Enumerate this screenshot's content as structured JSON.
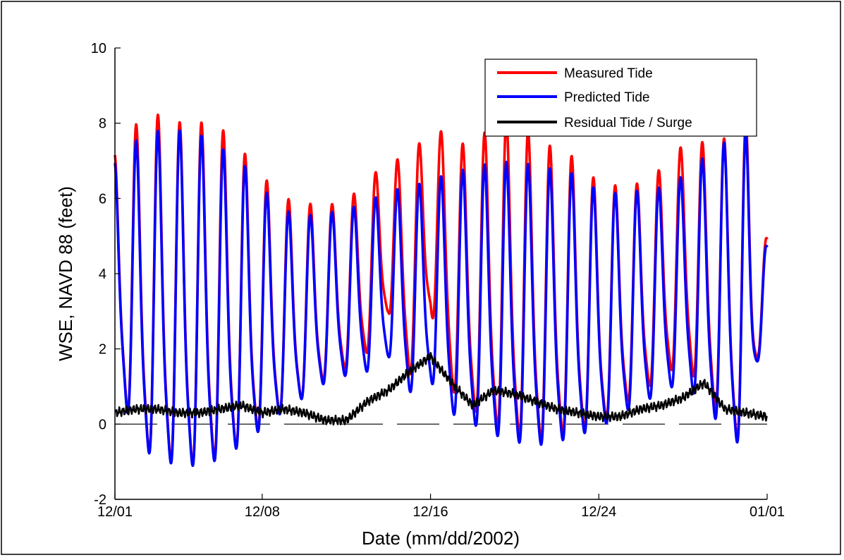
{
  "chart_data": {
    "type": "line",
    "title": "",
    "xlabel": "Date (mm/dd/2002)",
    "ylabel": "WSE, NAVD 88 (feet)",
    "ylim": [
      -2,
      10
    ],
    "x_range": [
      "2002-12-01",
      "2003-01-01"
    ],
    "x_ticks": [
      "12/01",
      "12/08",
      "12/16",
      "12/24",
      "01/01"
    ],
    "y_ticks": [
      "-2",
      "0",
      "2",
      "4",
      "6",
      "8",
      "10"
    ],
    "grid": false,
    "legend_position": "top-right",
    "series": [
      {
        "name": "Measured Tide",
        "color": "#ff0000",
        "x": [
          "2002-12-01",
          "2002-12-02",
          "2002-12-03",
          "2002-12-04",
          "2002-12-05",
          "2002-12-06",
          "2002-12-07",
          "2002-12-08",
          "2002-12-09",
          "2002-12-10",
          "2002-12-11",
          "2002-12-12",
          "2002-12-13",
          "2002-12-14",
          "2002-12-15",
          "2002-12-16",
          "2002-12-17",
          "2002-12-18",
          "2002-12-19",
          "2002-12-20",
          "2002-12-21",
          "2002-12-22",
          "2002-12-23",
          "2002-12-24",
          "2002-12-25",
          "2002-12-26",
          "2002-12-27",
          "2002-12-28",
          "2002-12-29",
          "2002-12-30",
          "2002-12-31",
          "2003-01-01"
        ],
        "high_tides": [
          6.7,
          7.2,
          7.4,
          7.2,
          7.2,
          7.1,
          6.6,
          6.0,
          5.5,
          5.4,
          5.4,
          5.5,
          6.1,
          6.6,
          6.6,
          7.4,
          7.1,
          6.6,
          7.4,
          7.3,
          6.9,
          6.6,
          6.4,
          5.8,
          5.8,
          5.9,
          6.3,
          6.9,
          6.9,
          6.9,
          7.3,
          4.8
        ],
        "low_tides": [
          1.3,
          -0.8,
          -1.3,
          -1.4,
          -1.5,
          -1.2,
          -0.9,
          -0.3,
          0.1,
          0.5,
          1.0,
          1.3,
          1.7,
          2.8,
          1.0,
          2.8,
          0.6,
          0.1,
          -0.4,
          -0.6,
          -0.8,
          -0.6,
          -0.5,
          -0.3,
          0.2,
          0.6,
          1.0,
          1.4,
          0.6,
          -0.4,
          -1.0,
          3.5
        ]
      },
      {
        "name": "Predicted Tide",
        "color": "#0000ff",
        "x": [
          "2002-12-01",
          "2002-12-02",
          "2002-12-03",
          "2002-12-04",
          "2002-12-05",
          "2002-12-06",
          "2002-12-07",
          "2002-12-08",
          "2002-12-09",
          "2002-12-10",
          "2002-12-11",
          "2002-12-12",
          "2002-12-13",
          "2002-12-14",
          "2002-12-15",
          "2002-12-16",
          "2002-12-17",
          "2002-12-18",
          "2002-12-19",
          "2002-12-20",
          "2002-12-21",
          "2002-12-22",
          "2002-12-23",
          "2002-12-24",
          "2002-12-25",
          "2002-12-26",
          "2002-12-27",
          "2002-12-28",
          "2002-12-29",
          "2002-12-30",
          "2002-12-31",
          "2003-01-01"
        ],
        "high_tides": [
          6.5,
          6.8,
          7.0,
          7.0,
          6.9,
          6.6,
          6.3,
          5.7,
          5.2,
          5.1,
          5.2,
          5.3,
          5.5,
          5.8,
          5.8,
          6.0,
          6.1,
          6.2,
          6.3,
          6.3,
          6.2,
          6.1,
          6.0,
          5.6,
          5.6,
          5.7,
          5.8,
          6.1,
          6.5,
          6.8,
          7.0,
          4.6
        ],
        "low_tides": [
          1.3,
          -0.9,
          -1.3,
          -1.5,
          -1.5,
          -1.3,
          -0.9,
          -0.4,
          0.1,
          0.5,
          0.9,
          1.1,
          1.2,
          1.6,
          0.6,
          0.9,
          0.0,
          -0.3,
          -0.6,
          -0.8,
          -0.9,
          -0.8,
          -0.6,
          -0.4,
          0.0,
          0.3,
          0.6,
          0.9,
          0.2,
          -0.5,
          -1.1,
          3.4
        ]
      },
      {
        "name": "Residual Tide / Surge",
        "color": "#000000",
        "x": [
          "2002-12-01",
          "2002-12-02",
          "2002-12-03",
          "2002-12-04",
          "2002-12-05",
          "2002-12-06",
          "2002-12-07",
          "2002-12-08",
          "2002-12-09",
          "2002-12-10",
          "2002-12-11",
          "2002-12-12",
          "2002-12-13",
          "2002-12-14",
          "2002-12-15",
          "2002-12-16",
          "2002-12-17",
          "2002-12-18",
          "2002-12-19",
          "2002-12-20",
          "2002-12-21",
          "2002-12-22",
          "2002-12-23",
          "2002-12-24",
          "2002-12-25",
          "2002-12-26",
          "2002-12-27",
          "2002-12-28",
          "2002-12-29",
          "2002-12-30",
          "2002-12-31",
          "2003-01-01"
        ],
        "y": [
          0.3,
          0.4,
          0.4,
          0.3,
          0.3,
          0.4,
          0.5,
          0.3,
          0.4,
          0.3,
          0.1,
          0.1,
          0.6,
          0.9,
          1.4,
          1.8,
          1.1,
          0.5,
          0.9,
          0.8,
          0.6,
          0.4,
          0.3,
          0.2,
          0.2,
          0.4,
          0.5,
          0.7,
          1.1,
          0.4,
          0.3,
          0.2
        ]
      }
    ]
  }
}
